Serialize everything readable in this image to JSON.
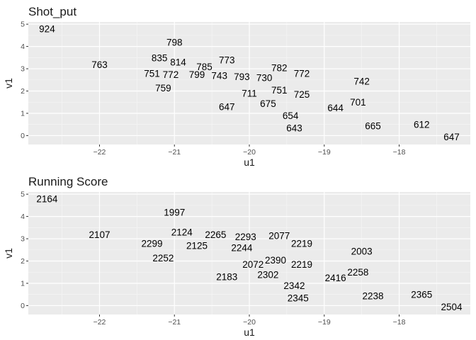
{
  "chart_data": [
    {
      "type": "scatter",
      "title": "Shot_put",
      "xlabel": "u1",
      "ylabel": "v1",
      "xlim": [
        -22.95,
        -17.05
      ],
      "ylim": [
        -0.4,
        5.1
      ],
      "xticks": [
        -22,
        -21,
        -20,
        -19,
        -18
      ],
      "yticks": [
        0,
        1,
        2,
        3,
        4,
        5
      ],
      "grid": true,
      "points": [
        {
          "x": -22.7,
          "y": 4.8,
          "label": "924"
        },
        {
          "x": -22.0,
          "y": 3.2,
          "label": "763"
        },
        {
          "x": -21.0,
          "y": 4.2,
          "label": "798"
        },
        {
          "x": -21.2,
          "y": 3.5,
          "label": "835"
        },
        {
          "x": -20.95,
          "y": 3.3,
          "label": "814"
        },
        {
          "x": -20.6,
          "y": 3.1,
          "label": "785"
        },
        {
          "x": -20.3,
          "y": 3.4,
          "label": "773"
        },
        {
          "x": -21.3,
          "y": 2.8,
          "label": "751"
        },
        {
          "x": -21.05,
          "y": 2.75,
          "label": "772"
        },
        {
          "x": -20.7,
          "y": 2.75,
          "label": "799"
        },
        {
          "x": -20.4,
          "y": 2.7,
          "label": "743"
        },
        {
          "x": -20.1,
          "y": 2.65,
          "label": "793"
        },
        {
          "x": -19.8,
          "y": 2.6,
          "label": "730"
        },
        {
          "x": -19.6,
          "y": 3.05,
          "label": "782"
        },
        {
          "x": -19.3,
          "y": 2.8,
          "label": "772"
        },
        {
          "x": -21.15,
          "y": 2.15,
          "label": "759"
        },
        {
          "x": -20.0,
          "y": 1.9,
          "label": "711"
        },
        {
          "x": -19.6,
          "y": 2.05,
          "label": "751"
        },
        {
          "x": -19.3,
          "y": 1.85,
          "label": "725"
        },
        {
          "x": -20.3,
          "y": 1.3,
          "label": "647"
        },
        {
          "x": -19.75,
          "y": 1.45,
          "label": "675"
        },
        {
          "x": -19.45,
          "y": 0.9,
          "label": "654"
        },
        {
          "x": -19.4,
          "y": 0.35,
          "label": "643"
        },
        {
          "x": -18.85,
          "y": 1.25,
          "label": "644"
        },
        {
          "x": -18.5,
          "y": 2.45,
          "label": "742"
        },
        {
          "x": -18.55,
          "y": 1.5,
          "label": "701"
        },
        {
          "x": -18.35,
          "y": 0.45,
          "label": "665"
        },
        {
          "x": -17.7,
          "y": 0.5,
          "label": "612"
        },
        {
          "x": -17.3,
          "y": -0.05,
          "label": "647"
        }
      ]
    },
    {
      "type": "scatter",
      "title": "Running Score",
      "xlabel": "u1",
      "ylabel": "v1",
      "xlim": [
        -22.95,
        -17.05
      ],
      "ylim": [
        -0.4,
        5.1
      ],
      "xticks": [
        -22,
        -21,
        -20,
        -19,
        -18
      ],
      "yticks": [
        0,
        1,
        2,
        3,
        4,
        5
      ],
      "grid": true,
      "points": [
        {
          "x": -22.7,
          "y": 4.8,
          "label": "2164"
        },
        {
          "x": -22.0,
          "y": 3.2,
          "label": "2107"
        },
        {
          "x": -21.0,
          "y": 4.2,
          "label": "1997"
        },
        {
          "x": -20.9,
          "y": 3.3,
          "label": "2124"
        },
        {
          "x": -20.45,
          "y": 3.2,
          "label": "2265"
        },
        {
          "x": -20.05,
          "y": 3.1,
          "label": "2293"
        },
        {
          "x": -19.6,
          "y": 3.15,
          "label": "2077"
        },
        {
          "x": -21.3,
          "y": 2.8,
          "label": "2299"
        },
        {
          "x": -20.7,
          "y": 2.7,
          "label": "2125"
        },
        {
          "x": -20.1,
          "y": 2.6,
          "label": "2244"
        },
        {
          "x": -19.3,
          "y": 2.8,
          "label": "2219"
        },
        {
          "x": -21.15,
          "y": 2.15,
          "label": "2252"
        },
        {
          "x": -19.95,
          "y": 1.85,
          "label": "2072"
        },
        {
          "x": -19.65,
          "y": 2.05,
          "label": "2390"
        },
        {
          "x": -19.3,
          "y": 1.85,
          "label": "2219"
        },
        {
          "x": -20.3,
          "y": 1.3,
          "label": "2183"
        },
        {
          "x": -19.75,
          "y": 1.4,
          "label": "2302"
        },
        {
          "x": -19.4,
          "y": 0.9,
          "label": "2342"
        },
        {
          "x": -19.35,
          "y": 0.35,
          "label": "2345"
        },
        {
          "x": -18.85,
          "y": 1.25,
          "label": "2416"
        },
        {
          "x": -18.55,
          "y": 1.5,
          "label": "2258"
        },
        {
          "x": -18.5,
          "y": 2.45,
          "label": "2003"
        },
        {
          "x": -18.35,
          "y": 0.45,
          "label": "2238"
        },
        {
          "x": -17.7,
          "y": 0.5,
          "label": "2365"
        },
        {
          "x": -17.3,
          "y": -0.05,
          "label": "2504"
        }
      ]
    }
  ]
}
